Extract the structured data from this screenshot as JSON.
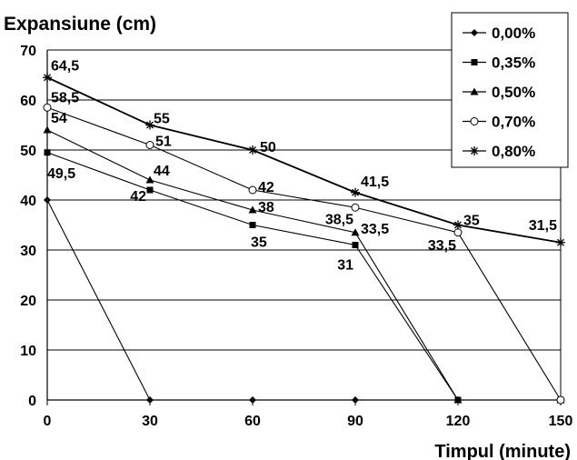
{
  "chart_data": {
    "type": "line",
    "title": "",
    "ylabel": "Expansiune  (cm)",
    "xlabel": "Timpul (minute)",
    "x": [
      0,
      30,
      60,
      90,
      120,
      150
    ],
    "xticks": [
      "0",
      "30",
      "60",
      "90",
      "120",
      "150"
    ],
    "ylim": [
      0,
      70
    ],
    "yticks": [
      "0",
      "10",
      "20",
      "30",
      "40",
      "50",
      "60",
      "70"
    ],
    "grid": "horizontal",
    "legend_position": "top-right",
    "series": [
      {
        "name": "0,00%",
        "marker": "diamond",
        "values": [
          40,
          0,
          0,
          0,
          0,
          0
        ]
      },
      {
        "name": "0,35%",
        "marker": "square",
        "values": [
          49.5,
          42,
          35,
          31,
          0,
          0
        ]
      },
      {
        "name": "0,50%",
        "marker": "triangle",
        "values": [
          54,
          44,
          38,
          33.5,
          0,
          0
        ]
      },
      {
        "name": "0,70%",
        "marker": "circle",
        "values": [
          58.5,
          51,
          42,
          38.5,
          33.5,
          0
        ]
      },
      {
        "name": "0,80%",
        "marker": "asterisk",
        "values": [
          64.5,
          55,
          50,
          41.5,
          35,
          31.5
        ]
      }
    ],
    "data_labels": [
      {
        "text": "64,5",
        "x": 0,
        "y": 64.5
      },
      {
        "text": "58,5",
        "x": 0,
        "y": 58.5
      },
      {
        "text": "54",
        "x": 0,
        "y": 54
      },
      {
        "text": "49,5",
        "x": 0,
        "y": 49.5
      },
      {
        "text": "55",
        "x": 30,
        "y": 55
      },
      {
        "text": "51",
        "x": 30,
        "y": 51
      },
      {
        "text": "44",
        "x": 30,
        "y": 44
      },
      {
        "text": "42",
        "x": 30,
        "y": 42
      },
      {
        "text": "50",
        "x": 60,
        "y": 50
      },
      {
        "text": "42",
        "x": 60,
        "y": 42
      },
      {
        "text": "38",
        "x": 60,
        "y": 38
      },
      {
        "text": "35",
        "x": 60,
        "y": 35
      },
      {
        "text": "41,5",
        "x": 90,
        "y": 41.5
      },
      {
        "text": "38,5",
        "x": 90,
        "y": 38.5
      },
      {
        "text": "33,5",
        "x": 90,
        "y": 33.5
      },
      {
        "text": "31",
        "x": 90,
        "y": 31
      },
      {
        "text": "35",
        "x": 120,
        "y": 35
      },
      {
        "text": "33,5",
        "x": 120,
        "y": 33.5
      },
      {
        "text": "31,5",
        "x": 150,
        "y": 31.5
      }
    ]
  }
}
